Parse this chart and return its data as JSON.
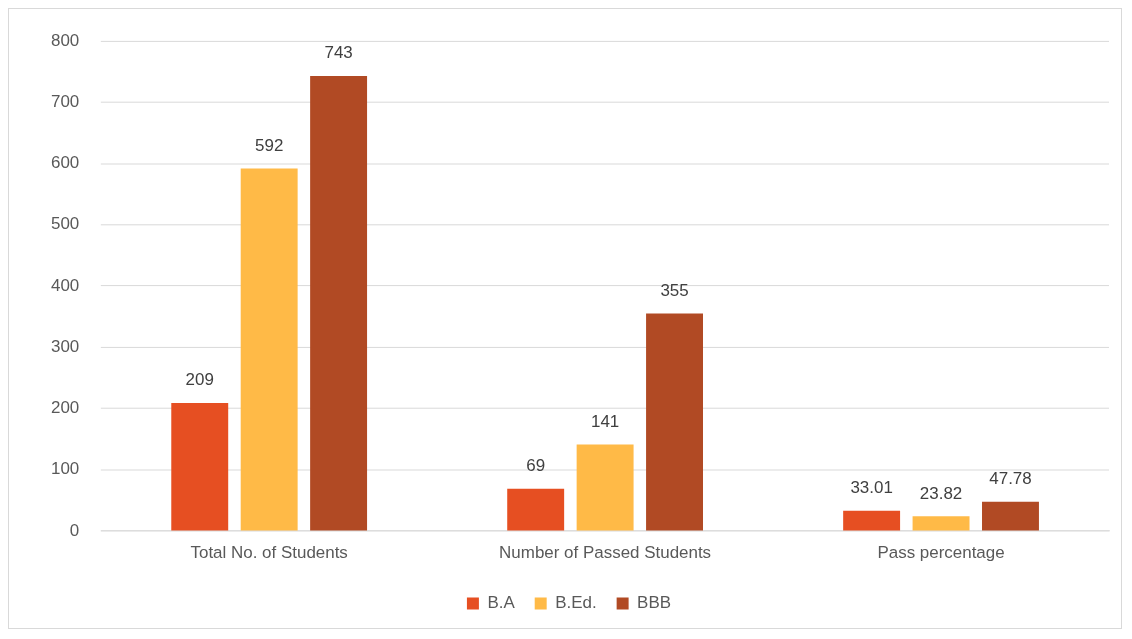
{
  "chart_data": {
    "type": "bar",
    "categories": [
      "Total No. of Students",
      "Number of Passed Students",
      "Pass percentage"
    ],
    "series": [
      {
        "name": "B.A",
        "color": "#e64f22",
        "values": [
          209,
          69,
          33.01
        ]
      },
      {
        "name": "B.Ed.",
        "color": "#ffba47",
        "values": [
          592,
          141,
          23.82
        ]
      },
      {
        "name": "BBB",
        "color": "#b14a24",
        "values": [
          743,
          355,
          47.78
        ]
      }
    ],
    "ylim": [
      0,
      800
    ],
    "yticks": [
      0,
      100,
      200,
      300,
      400,
      500,
      600,
      700,
      800
    ],
    "grid": "y",
    "legend": "bottom",
    "data_labels": true
  }
}
